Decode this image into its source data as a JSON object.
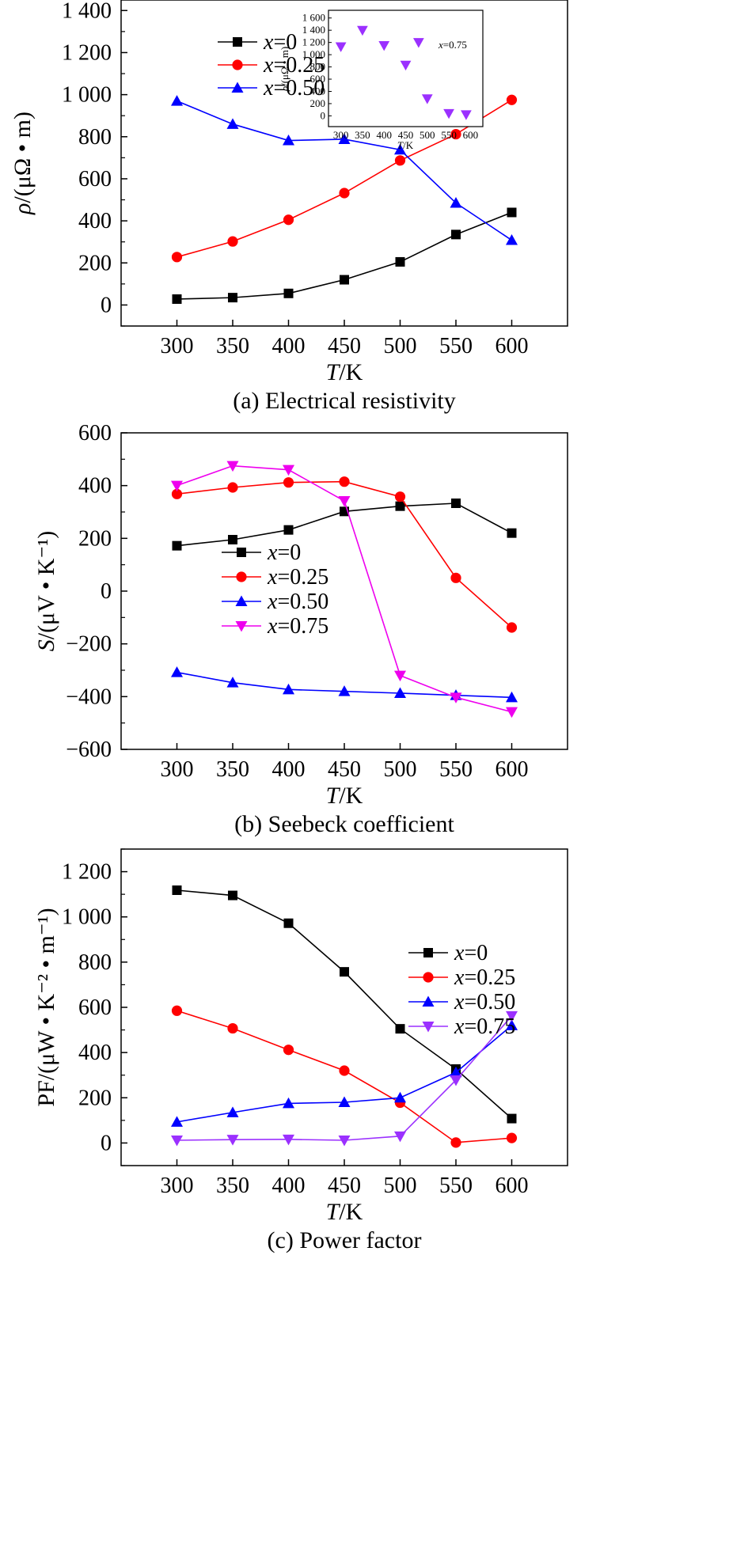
{
  "chart_data": [
    {
      "type": "line",
      "caption": "(a) Electrical resistivity",
      "xlabel": "T/K",
      "ylabel": "ρ/(μΩ • m)",
      "x": [
        300,
        350,
        400,
        450,
        500,
        550,
        600
      ],
      "xticks": [
        "300",
        "350",
        "400",
        "450",
        "500",
        "550",
        "600"
      ],
      "yticks": [
        "0",
        "200",
        "400",
        "600",
        "800",
        "1 000",
        "1 200",
        "1 400"
      ],
      "xlim": [
        250,
        650
      ],
      "ylim": [
        -100,
        1450
      ],
      "legend_position": "top-left",
      "series": [
        {
          "name": "x=0",
          "color": "#000000",
          "marker": "square",
          "values": [
            28,
            35,
            55,
            120,
            205,
            335,
            440
          ]
        },
        {
          "name": "x=0.25",
          "color": "#ff0000",
          "marker": "circle",
          "values": [
            228,
            302,
            405,
            532,
            687,
            812,
            975
          ]
        },
        {
          "name": "x=0.50",
          "color": "#0000ff",
          "marker": "triangle-up",
          "values": [
            970,
            860,
            782,
            788,
            738,
            485,
            308
          ]
        }
      ],
      "inset": {
        "type": "scatter",
        "xlabel": "T/K",
        "ylabel": "ρ/(μΩ • m)",
        "xticks": [
          "300",
          "350",
          "400",
          "450",
          "500",
          "550",
          "600"
        ],
        "yticks": [
          "0",
          "200",
          "400",
          "600",
          "800",
          "1 000",
          "1 200",
          "1 400",
          "1 600"
        ],
        "xlim": [
          275,
          625
        ],
        "ylim": [
          -150,
          1700
        ],
        "legend_label": "x=0.75",
        "series": [
          {
            "name": "x=0.75",
            "color": "#9b30ff",
            "marker": "triangle-down",
            "x": [
              300,
              350,
              400,
              450,
              480,
              500,
              550,
              590
            ],
            "values": [
              1130,
              1400,
              1150,
              830,
              1200,
              280,
              40,
              20
            ]
          }
        ]
      }
    },
    {
      "type": "line",
      "caption": "(b)  Seebeck coefficient",
      "xlabel": "T/K",
      "ylabel": "S/(μV • K⁻¹)",
      "x": [
        300,
        350,
        400,
        450,
        500,
        550,
        600
      ],
      "xticks": [
        "300",
        "350",
        "400",
        "450",
        "500",
        "550",
        "600"
      ],
      "yticks": [
        "−600",
        "−400",
        "−200",
        "0",
        "200",
        "400",
        "600"
      ],
      "xlim": [
        250,
        650
      ],
      "ylim": [
        -600,
        600
      ],
      "legend_position": "center-left",
      "series": [
        {
          "name": "x=0",
          "color": "#000000",
          "marker": "square",
          "values": [
            172,
            195,
            232,
            302,
            322,
            333,
            220
          ]
        },
        {
          "name": "x=0.25",
          "color": "#ff0000",
          "marker": "circle",
          "values": [
            368,
            393,
            412,
            415,
            358,
            50,
            -138
          ]
        },
        {
          "name": "x=0.50",
          "color": "#0000ff",
          "marker": "triangle-up",
          "values": [
            -308,
            -347,
            -373,
            -380,
            -387,
            -395,
            -403
          ]
        },
        {
          "name": "x=0.75",
          "color": "#ee00ee",
          "marker": "triangle-down",
          "values": [
            400,
            475,
            460,
            342,
            -320,
            -403,
            -458
          ]
        }
      ]
    },
    {
      "type": "line",
      "caption": "(c) Power factor",
      "xlabel": "T/K",
      "ylabel": "PF/(μW • K⁻² • m⁻¹)",
      "x": [
        300,
        350,
        400,
        450,
        500,
        550,
        600
      ],
      "xticks": [
        "300",
        "350",
        "400",
        "450",
        "500",
        "550",
        "600"
      ],
      "yticks": [
        "0",
        "200",
        "400",
        "600",
        "800",
        "1 000",
        "1 200"
      ],
      "xlim": [
        250,
        650
      ],
      "ylim": [
        -100,
        1300
      ],
      "legend_position": "top-right",
      "series": [
        {
          "name": "x=0",
          "color": "#000000",
          "marker": "square",
          "values": [
            1118,
            1095,
            972,
            757,
            505,
            327,
            108
          ]
        },
        {
          "name": "x=0.25",
          "color": "#ff0000",
          "marker": "circle",
          "values": [
            585,
            507,
            412,
            320,
            178,
            2,
            22
          ]
        },
        {
          "name": "x=0.50",
          "color": "#0000ff",
          "marker": "triangle-up",
          "values": [
            93,
            135,
            175,
            180,
            200,
            312,
            520
          ]
        },
        {
          "name": "x=0.75",
          "color": "#9b30ff",
          "marker": "triangle-down",
          "values": [
            12,
            15,
            16,
            12,
            30,
            278,
            562
          ]
        }
      ]
    }
  ]
}
